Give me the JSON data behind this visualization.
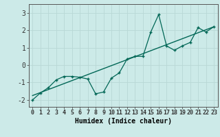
{
  "xlabel": "Humidex (Indice chaleur)",
  "ylabel": "",
  "bg_color": "#cceae8",
  "line_color": "#006655",
  "grid_color": "#b8d8d5",
  "xlim": [
    -0.5,
    23.5
  ],
  "ylim": [
    -2.4,
    3.5
  ],
  "x_data": [
    0,
    1,
    2,
    3,
    4,
    5,
    6,
    7,
    8,
    9,
    10,
    11,
    12,
    13,
    14,
    15,
    16,
    17,
    18,
    19,
    20,
    21,
    22,
    23
  ],
  "y_data": [
    -2.0,
    -1.6,
    -1.3,
    -0.85,
    -0.65,
    -0.65,
    -0.7,
    -0.8,
    -1.65,
    -1.55,
    -0.75,
    -0.45,
    0.35,
    0.5,
    0.5,
    1.9,
    2.9,
    1.1,
    0.85,
    1.1,
    1.3,
    2.15,
    1.9,
    2.2
  ],
  "trend_x": [
    0,
    23
  ],
  "trend_y": [
    -1.75,
    2.2
  ],
  "xtick_labels": [
    "0",
    "1",
    "2",
    "3",
    "4",
    "5",
    "6",
    "7",
    "8",
    "9",
    "10",
    "11",
    "12",
    "13",
    "14",
    "15",
    "16",
    "17",
    "18",
    "19",
    "20",
    "21",
    "22",
    "23"
  ],
  "ytick_labels": [
    "-2",
    "-1",
    "0",
    "1",
    "2",
    "3"
  ],
  "ytick_vals": [
    -2,
    -1,
    0,
    1,
    2,
    3
  ],
  "tick_fontsize": 6,
  "label_fontsize": 7,
  "marker": "+"
}
